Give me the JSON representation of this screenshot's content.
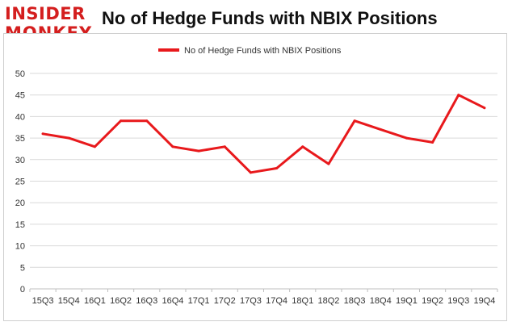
{
  "logo": {
    "line1": "INSIDER",
    "line2": "MONKEY"
  },
  "title": "No of Hedge Funds with NBIX Positions",
  "colors": {
    "series": "#e8191c",
    "brand": "#d41e1e",
    "grid": "#d9d9d9"
  },
  "chart_data": {
    "type": "line",
    "title": "No of Hedge Funds with NBIX Positions",
    "xlabel": "",
    "ylabel": "",
    "ylim": [
      0,
      50
    ],
    "yticks": [
      0,
      5,
      10,
      15,
      20,
      25,
      30,
      35,
      40,
      45,
      50
    ],
    "grid": true,
    "legend_position": "top-center",
    "categories": [
      "15Q3",
      "15Q4",
      "16Q1",
      "16Q2",
      "16Q3",
      "16Q4",
      "17Q1",
      "17Q2",
      "17Q3",
      "17Q4",
      "18Q1",
      "18Q2",
      "18Q3",
      "18Q4",
      "19Q1",
      "19Q2",
      "19Q3",
      "19Q4"
    ],
    "series": [
      {
        "name": "No of Hedge Funds with NBIX Positions",
        "color": "#e8191c",
        "values": [
          36,
          35,
          33,
          39,
          39,
          33,
          32,
          33,
          27,
          28,
          33,
          29,
          39,
          37,
          35,
          34,
          45,
          42
        ]
      }
    ]
  }
}
